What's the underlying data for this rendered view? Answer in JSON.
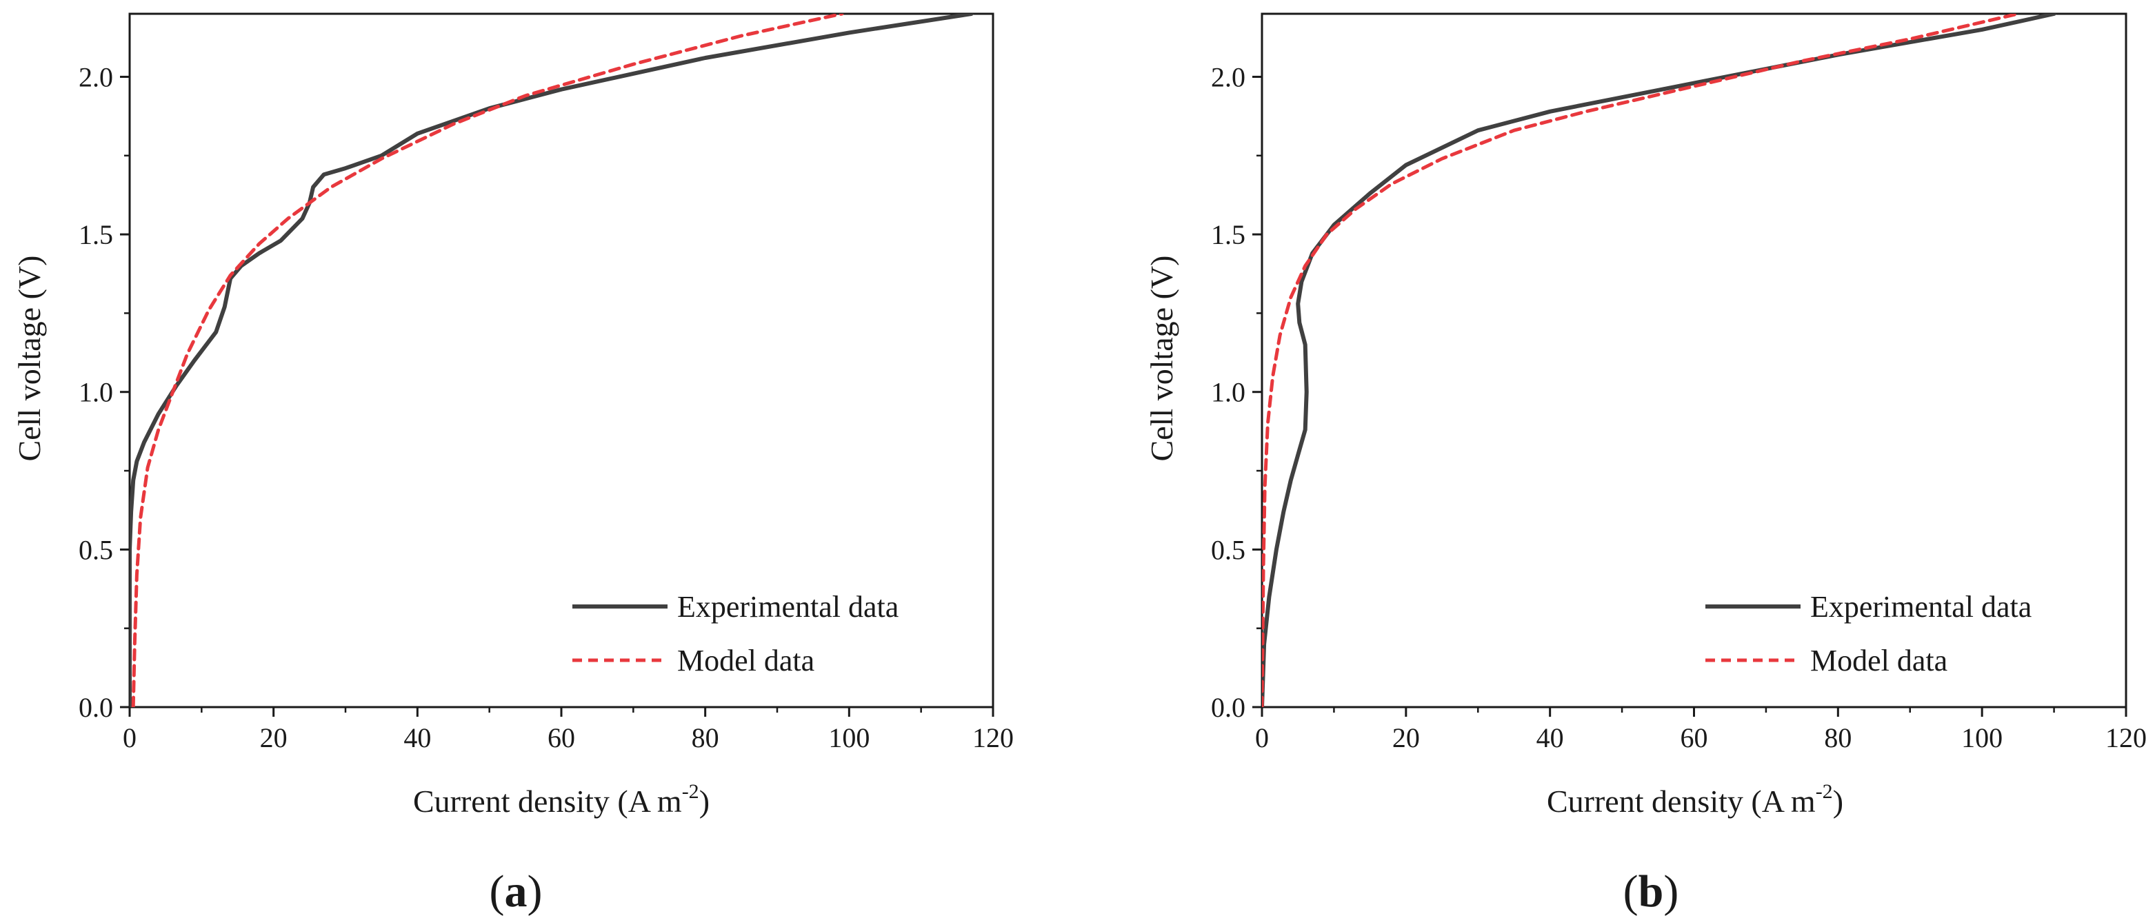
{
  "chart_data": [
    {
      "panel": "a",
      "type": "line",
      "xlabel": "Current density",
      "xunit": "A m",
      "xunit_sup": "-2",
      "ylabel": "Cell voltage (V)",
      "xlim": [
        0,
        120
      ],
      "ylim": [
        0,
        2.2
      ],
      "xticks": [
        0,
        20,
        40,
        60,
        80,
        100,
        120
      ],
      "yticks": [
        0.0,
        0.5,
        1.0,
        1.5,
        2.0
      ],
      "xtick_labels": [
        "0",
        "20",
        "40",
        "60",
        "80",
        "100",
        "120"
      ],
      "ytick_labels": [
        "0.0",
        "0.5",
        "1.0",
        "1.5",
        "2.0"
      ],
      "legend_position": "bottom-right",
      "series": [
        {
          "name": "Experimental data",
          "style": "solid",
          "color": "#404040",
          "x": [
            0,
            0,
            0.2,
            0.5,
            1.0,
            2.0,
            4.0,
            6.5,
            9.0,
            12.0,
            13.2,
            14.0,
            15.5,
            18.0,
            21.0,
            24.0,
            25.0,
            25.5,
            27.0,
            30.0,
            35.0,
            40.0,
            50.0,
            60.0,
            80.0,
            100.0,
            117.0
          ],
          "y": [
            0.0,
            0.5,
            0.62,
            0.72,
            0.78,
            0.84,
            0.93,
            1.02,
            1.1,
            1.19,
            1.27,
            1.36,
            1.4,
            1.44,
            1.48,
            1.55,
            1.6,
            1.65,
            1.69,
            1.71,
            1.75,
            1.82,
            1.9,
            1.96,
            2.06,
            2.14,
            2.2
          ]
        },
        {
          "name": "Model data",
          "style": "dashed",
          "color": "#e8383d",
          "x": [
            0.5,
            0.7,
            1.0,
            1.5,
            2.5,
            4.0,
            6.0,
            8.0,
            11.0,
            14.0,
            18.0,
            22.0,
            28.0,
            35.0,
            45.0,
            55.0,
            70.0,
            85.0,
            99.0
          ],
          "y": [
            0.0,
            0.2,
            0.42,
            0.6,
            0.76,
            0.88,
            1.0,
            1.12,
            1.26,
            1.37,
            1.47,
            1.55,
            1.65,
            1.74,
            1.85,
            1.94,
            2.04,
            2.13,
            2.2
          ]
        }
      ]
    },
    {
      "panel": "b",
      "type": "line",
      "xlabel": "Current density",
      "xunit": "A m",
      "xunit_sup": "-2",
      "ylabel": "Cell voltage (V)",
      "xlim": [
        0,
        120
      ],
      "ylim": [
        0,
        2.2
      ],
      "xticks": [
        0,
        20,
        40,
        60,
        80,
        100,
        120
      ],
      "yticks": [
        0.0,
        0.5,
        1.0,
        1.5,
        2.0
      ],
      "xtick_labels": [
        "0",
        "20",
        "40",
        "60",
        "80",
        "100",
        "120"
      ],
      "ytick_labels": [
        "0.0",
        "0.5",
        "1.0",
        "1.5",
        "2.0"
      ],
      "legend_position": "bottom-right",
      "series": [
        {
          "name": "Experimental data",
          "style": "solid",
          "color": "#404040",
          "x": [
            0,
            0.3,
            1.0,
            2.0,
            3.0,
            4.0,
            5.0,
            6.0,
            6.2,
            6.0,
            5.2,
            5.0,
            5.5,
            7.0,
            10.0,
            15.0,
            20.0,
            30.0,
            40.0,
            60.0,
            80.0,
            100.0,
            110.0
          ],
          "y": [
            0.0,
            0.2,
            0.35,
            0.5,
            0.62,
            0.72,
            0.8,
            0.88,
            1.0,
            1.15,
            1.22,
            1.28,
            1.35,
            1.44,
            1.53,
            1.63,
            1.72,
            1.83,
            1.89,
            1.98,
            2.07,
            2.15,
            2.2
          ]
        },
        {
          "name": "Model data",
          "style": "dashed",
          "color": "#e8383d",
          "x": [
            0,
            0.2,
            0.4,
            0.8,
            1.5,
            2.5,
            4.0,
            6.0,
            9.0,
            13.0,
            18.0,
            25.0,
            35.0,
            45.0,
            60.0,
            75.0,
            90.0,
            105.0
          ],
          "y": [
            0.0,
            0.45,
            0.7,
            0.9,
            1.05,
            1.18,
            1.3,
            1.4,
            1.5,
            1.58,
            1.66,
            1.74,
            1.83,
            1.89,
            1.97,
            2.05,
            2.12,
            2.2
          ]
        }
      ]
    }
  ],
  "panel_labels": [
    "a",
    "b"
  ]
}
